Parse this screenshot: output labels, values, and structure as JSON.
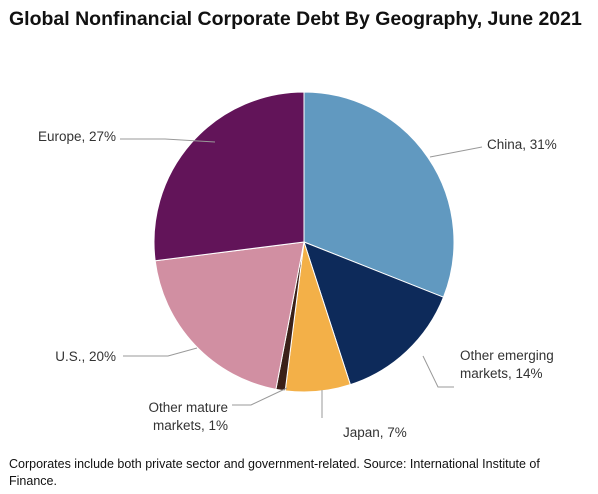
{
  "chart_data": {
    "type": "pie",
    "title": "Global Nonfinancial Corporate Debt By Geography, June 2021",
    "start_angle_deg": 0,
    "direction": "clockwise",
    "slices": [
      {
        "label": "China",
        "value": 31,
        "color": "#6199c0",
        "label_lines": [
          "China, 31%"
        ]
      },
      {
        "label": "Other emerging markets",
        "value": 14,
        "color": "#0d2a5a",
        "label_lines": [
          "Other emerging",
          "markets, 14%"
        ]
      },
      {
        "label": "Japan",
        "value": 7,
        "color": "#f3b048",
        "label_lines": [
          "Japan, 7%"
        ]
      },
      {
        "label": "Other mature markets",
        "value": 1,
        "color": "#3a2018",
        "label_lines": [
          "Other mature",
          "markets, 1%"
        ]
      },
      {
        "label": "U.S.",
        "value": 20,
        "color": "#d18fa2",
        "label_lines": [
          "U.S., 20%"
        ]
      },
      {
        "label": "Europe",
        "value": 27,
        "color": "#621459",
        "label_lines": [
          "Europe, 27%"
        ]
      }
    ],
    "footnote": "Corporates include both private sector and government-related. Source: International Institute of Finance."
  }
}
